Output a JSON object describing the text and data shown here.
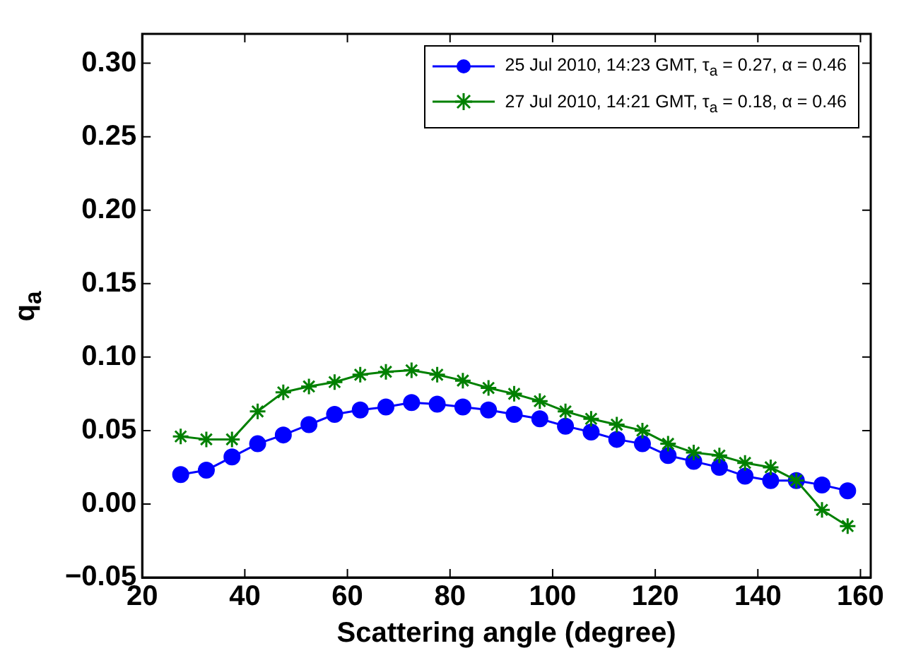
{
  "chart_data": {
    "type": "line",
    "xlabel": "Scattering angle (degree)",
    "ylabel": "q$_{a}$",
    "x": [
      27.5,
      32.5,
      37.5,
      42.5,
      47.5,
      52.5,
      57.5,
      62.5,
      67.5,
      72.5,
      77.5,
      82.5,
      87.5,
      92.5,
      97.5,
      102.5,
      107.5,
      112.5,
      117.5,
      122.5,
      127.5,
      132.5,
      137.5,
      142.5,
      147.5,
      152.5,
      157.5
    ],
    "series": [
      {
        "name": "25 Jul 2010, 14:23 GMT, τ$_{a}$ = 0.27, α = 0.46",
        "color": "#0000ff",
        "marker": "circle",
        "values": [
          0.02,
          0.023,
          0.032,
          0.041,
          0.047,
          0.054,
          0.061,
          0.064,
          0.066,
          0.069,
          0.068,
          0.066,
          0.064,
          0.061,
          0.058,
          0.053,
          0.049,
          0.044,
          0.041,
          0.033,
          0.029,
          0.025,
          0.019,
          0.016,
          0.016,
          0.013,
          0.009
        ]
      },
      {
        "name": "27 Jul 2010, 14:21 GMT, τ$_{a}$ = 0.18, α = 0.46",
        "color": "#008000",
        "marker": "cross",
        "values": [
          0.046,
          0.044,
          0.044,
          0.063,
          0.076,
          0.08,
          0.083,
          0.088,
          0.09,
          0.091,
          0.088,
          0.084,
          0.079,
          0.075,
          0.07,
          0.063,
          0.058,
          0.054,
          0.05,
          0.041,
          0.035,
          0.033,
          0.028,
          0.025,
          0.016,
          -0.004,
          -0.015
        ]
      }
    ],
    "xlim": [
      20,
      162
    ],
    "xticks": [
      20,
      40,
      60,
      80,
      100,
      120,
      140,
      160
    ],
    "ylim": [
      -0.05,
      0.32
    ],
    "yticks": [
      {
        "value": -0.05,
        "label": "−0.05"
      },
      {
        "value": 0,
        "label": "0.00"
      },
      {
        "value": 0.05,
        "label": "0.05"
      },
      {
        "value": 0.1,
        "label": "0.10"
      },
      {
        "value": 0.15,
        "label": "0.15"
      },
      {
        "value": 0.2,
        "label": "0.20"
      },
      {
        "value": 0.25,
        "label": "0.25"
      },
      {
        "value": 0.3,
        "label": "0.30"
      }
    ],
    "grid": false,
    "legend": "top right",
    "line_style": "solid"
  }
}
